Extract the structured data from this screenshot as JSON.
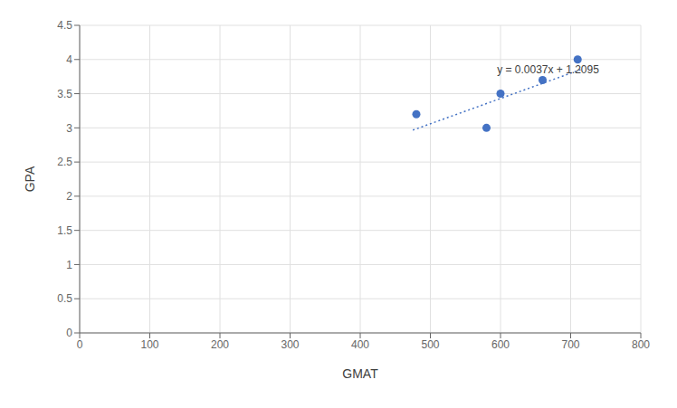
{
  "chart_data": {
    "type": "scatter",
    "xlabel": "GMAT",
    "ylabel": "GPA",
    "xlim": [
      0,
      800
    ],
    "ylim": [
      0,
      4.5
    ],
    "xticks": [
      0,
      100,
      200,
      300,
      400,
      500,
      600,
      700,
      800
    ],
    "yticks": [
      0,
      0.5,
      1,
      1.5,
      2,
      2.5,
      3,
      3.5,
      4,
      4.5
    ],
    "grid": true,
    "series": [
      {
        "type": "scatter",
        "color": "#4472C4",
        "marker": "circle",
        "x": [
          480,
          580,
          600,
          660,
          710
        ],
        "values": [
          3.2,
          3.0,
          3.5,
          3.7,
          4.0
        ]
      },
      {
        "type": "line",
        "color": "#4472C4",
        "line_style": "dotted",
        "x": [
          475,
          715
        ],
        "values": [
          2.967,
          3.855
        ]
      }
    ],
    "annotations": [
      {
        "text": "y = 0.0037x + 1.2095",
        "x": 595,
        "y": 3.76
      }
    ]
  }
}
